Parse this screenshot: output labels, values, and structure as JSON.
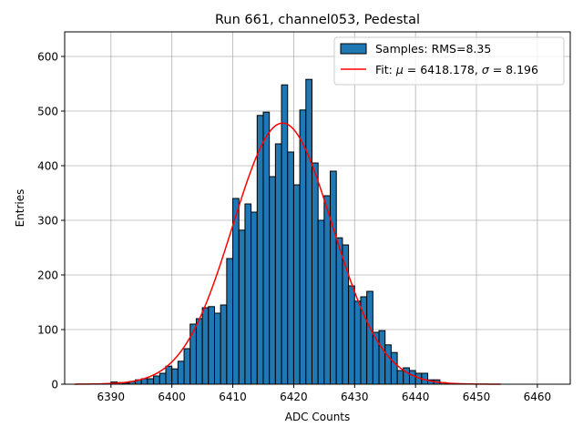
{
  "chart_data": {
    "type": "bar",
    "title": "Run 661, channel053, Pedestal",
    "xlabel": "ADC Counts",
    "ylabel": "Entries",
    "xlim": [
      6382.4,
      6465.4
    ],
    "ylim": [
      0,
      645
    ],
    "xticks": [
      6390,
      6400,
      6410,
      6420,
      6430,
      6440,
      6450,
      6460
    ],
    "yticks": [
      0,
      100,
      200,
      300,
      400,
      500,
      600
    ],
    "grid": true,
    "legend_position": "top-right",
    "bin_width": 1,
    "histogram": {
      "name": "Samples: RMS=8.35",
      "color": "#1f77b4",
      "edgecolor": "#000000",
      "bin_left_edges": [
        6389,
        6390,
        6391,
        6392,
        6393,
        6394,
        6395,
        6396,
        6397,
        6398,
        6399,
        6400,
        6401,
        6402,
        6403,
        6404,
        6405,
        6406,
        6407,
        6408,
        6409,
        6410,
        6411,
        6412,
        6413,
        6414,
        6415,
        6416,
        6417,
        6418,
        6419,
        6420,
        6421,
        6422,
        6423,
        6424,
        6425,
        6426,
        6427,
        6428,
        6429,
        6430,
        6431,
        6432,
        6433,
        6434,
        6435,
        6436,
        6437,
        6438,
        6439,
        6440,
        6441,
        6442,
        6443,
        6444,
        6445,
        6446
      ],
      "counts": [
        1,
        4,
        3,
        2,
        5,
        8,
        10,
        10,
        15,
        20,
        33,
        28,
        42,
        65,
        110,
        120,
        140,
        142,
        130,
        145,
        230,
        340,
        282,
        330,
        315,
        492,
        498,
        380,
        440,
        548,
        425,
        365,
        502,
        558,
        405,
        300,
        345,
        390,
        268,
        255,
        180,
        152,
        160,
        170,
        95,
        98,
        72,
        58,
        25,
        30,
        25,
        20,
        20,
        8,
        8,
        3,
        1,
        1
      ]
    },
    "fit": {
      "name": "Fit: μ = 6418.178, σ = 8.196",
      "name_prefix": "Fit: ",
      "mu_symbol": "μ",
      "mu_text": " = 6418.178, ",
      "sigma_symbol": "σ",
      "sigma_text": " = 8.196",
      "color": "#ff0000",
      "mu": 6418.178,
      "sigma": 8.196,
      "amplitude": 478,
      "x_range": [
        6384,
        6454
      ]
    }
  }
}
